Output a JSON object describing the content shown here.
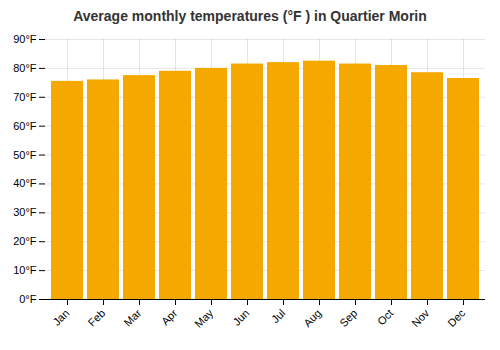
{
  "chart_data": {
    "type": "bar",
    "title": "Average monthly temperatures (°F ) in Quartier Morin",
    "categories": [
      "Jan",
      "Feb",
      "Mar",
      "Apr",
      "May",
      "Jun",
      "Jul",
      "Aug",
      "Sep",
      "Oct",
      "Nov",
      "Dec"
    ],
    "values": [
      75.5,
      76.0,
      77.5,
      79.0,
      80.0,
      81.5,
      82.0,
      82.5,
      81.5,
      81.0,
      78.5,
      76.5
    ],
    "color": "#F5A800",
    "ylim": [
      0,
      90
    ],
    "yticks": [
      {
        "value": 0,
        "label": "0°F"
      },
      {
        "value": 10,
        "label": "10°F"
      },
      {
        "value": 20,
        "label": "20°F"
      },
      {
        "value": 30,
        "label": "30°F"
      },
      {
        "value": 40,
        "label": "40°F"
      },
      {
        "value": 50,
        "label": "50°F"
      },
      {
        "value": 60,
        "label": "60°F"
      },
      {
        "value": 70,
        "label": "70°F"
      },
      {
        "value": 80,
        "label": "80°F"
      },
      {
        "value": 90,
        "label": "90°F"
      }
    ],
    "grid": true
  }
}
